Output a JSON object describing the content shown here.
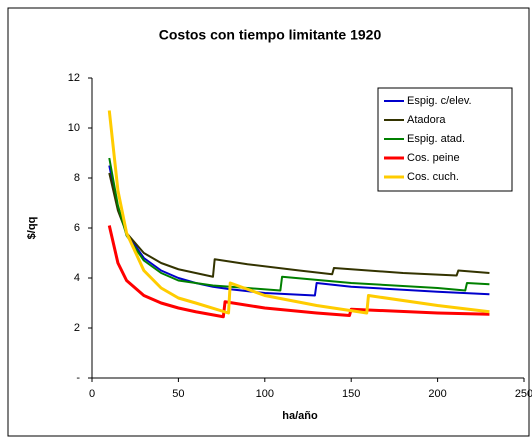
{
  "chart_data": {
    "type": "line",
    "title": "Costos con tiempo limitante 1920",
    "xlabel": "ha/año",
    "ylabel": "$/qq",
    "xlim": [
      0,
      250
    ],
    "xticks": [
      0,
      50,
      100,
      150,
      200,
      250
    ],
    "ylim": [
      0,
      12
    ],
    "yticks": [
      {
        "value": 0,
        "label": "-"
      },
      2,
      4,
      6,
      8,
      10,
      12
    ],
    "grid": false,
    "legend": "upper right",
    "series": [
      {
        "name": "Espig. c/elev.",
        "color": "#0000cc",
        "x": [
          10,
          15,
          20,
          30,
          40,
          50,
          60,
          70,
          80,
          100,
          129,
          130,
          150,
          200,
          230
        ],
        "values": [
          8.5,
          6.8,
          5.8,
          4.8,
          4.3,
          4.0,
          3.8,
          3.65,
          3.55,
          3.4,
          3.3,
          3.8,
          3.65,
          3.45,
          3.35
        ]
      },
      {
        "name": "Atadora",
        "color": "#333300",
        "x": [
          10,
          15,
          20,
          30,
          40,
          50,
          60,
          70,
          71,
          90,
          120,
          139,
          140,
          180,
          211,
          212,
          230
        ],
        "values": [
          8.2,
          6.7,
          5.8,
          5.0,
          4.6,
          4.35,
          4.2,
          4.05,
          4.75,
          4.55,
          4.3,
          4.15,
          4.4,
          4.2,
          4.1,
          4.3,
          4.2
        ]
      },
      {
        "name": "Espig. atad.",
        "color": "#008000",
        "x": [
          10,
          15,
          20,
          30,
          40,
          50,
          70,
          90,
          109,
          110,
          150,
          200,
          216,
          217,
          230
        ],
        "values": [
          8.8,
          6.9,
          5.7,
          4.7,
          4.2,
          3.9,
          3.7,
          3.6,
          3.5,
          4.05,
          3.8,
          3.6,
          3.5,
          3.8,
          3.75
        ]
      },
      {
        "name": "Cos. peine",
        "color": "#ff0000",
        "x": [
          10,
          15,
          20,
          30,
          40,
          50,
          60,
          76,
          77,
          100,
          130,
          149,
          150,
          200,
          230
        ],
        "values": [
          6.1,
          4.6,
          3.9,
          3.3,
          3.0,
          2.8,
          2.65,
          2.45,
          3.05,
          2.8,
          2.6,
          2.5,
          2.75,
          2.6,
          2.55
        ]
      },
      {
        "name": "Cos. cuch.",
        "color": "#ffcc00",
        "x": [
          10,
          15,
          20,
          30,
          40,
          50,
          60,
          79,
          80,
          100,
          130,
          159,
          160,
          200,
          230
        ],
        "values": [
          10.7,
          7.5,
          5.8,
          4.3,
          3.6,
          3.2,
          3.0,
          2.6,
          3.8,
          3.3,
          2.9,
          2.6,
          3.3,
          2.9,
          2.65
        ]
      }
    ]
  }
}
